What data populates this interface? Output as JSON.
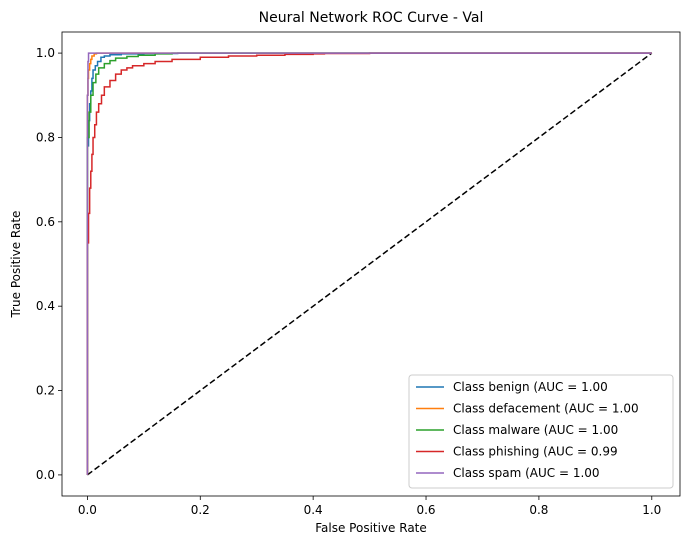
{
  "chart_data": {
    "type": "line",
    "title": "Neural Network ROC Curve - Val",
    "xlabel": "False Positive Rate",
    "ylabel": "True Positive Rate",
    "xlim": [
      -0.045,
      1.05
    ],
    "ylim": [
      -0.05,
      1.05
    ],
    "xticks": [
      0.0,
      0.2,
      0.4,
      0.6,
      0.8,
      1.0
    ],
    "yticks": [
      0.0,
      0.2,
      0.4,
      0.6,
      0.8,
      1.0
    ],
    "xtick_labels": [
      "0.0",
      "0.2",
      "0.4",
      "0.6",
      "0.8",
      "1.0"
    ],
    "ytick_labels": [
      "0.0",
      "0.2",
      "0.4",
      "0.6",
      "0.8",
      "1.0"
    ],
    "grid": false,
    "legend_position": "bottom-right",
    "series": [
      {
        "name": "Class benign (AUC = 1.00",
        "color": "#1f77b4",
        "x": [
          0,
          0,
          0.002,
          0.004,
          0.006,
          0.008,
          0.01,
          0.014,
          0.018,
          0.024,
          0.03,
          0.04,
          0.06,
          0.1,
          0.16,
          0.3,
          0.55,
          1.0
        ],
        "y": [
          0,
          0.5,
          0.78,
          0.84,
          0.88,
          0.91,
          0.94,
          0.96,
          0.97,
          0.98,
          0.99,
          0.993,
          0.996,
          0.998,
          0.999,
          1.0,
          1.0,
          1.0
        ]
      },
      {
        "name": "Class defacement (AUC = 1.00",
        "color": "#ff7f0e",
        "x": [
          0,
          0,
          0.001,
          0.002,
          0.004,
          0.006,
          0.008,
          0.012,
          0.016,
          0.03,
          1.0
        ],
        "y": [
          0,
          0.6,
          0.9,
          0.94,
          0.96,
          0.975,
          0.985,
          0.993,
          0.998,
          1.0,
          1.0
        ]
      },
      {
        "name": "Class malware (AUC = 1.00",
        "color": "#2ca02c",
        "x": [
          0,
          0,
          0.003,
          0.006,
          0.01,
          0.015,
          0.02,
          0.03,
          0.04,
          0.05,
          0.07,
          0.09,
          0.12,
          0.15,
          0.17,
          0.3,
          1.0
        ],
        "y": [
          0,
          0.55,
          0.8,
          0.86,
          0.9,
          0.93,
          0.95,
          0.965,
          0.975,
          0.982,
          0.988,
          0.992,
          0.995,
          0.998,
          1.0,
          1.0,
          1.0
        ]
      },
      {
        "name": "Class phishing (AUC = 0.99",
        "color": "#d62728",
        "x": [
          0,
          0,
          0.002,
          0.004,
          0.006,
          0.008,
          0.01,
          0.013,
          0.016,
          0.02,
          0.025,
          0.03,
          0.04,
          0.05,
          0.06,
          0.07,
          0.08,
          0.1,
          0.12,
          0.15,
          0.2,
          0.25,
          0.3,
          0.35,
          0.4,
          0.42,
          0.5,
          0.56,
          0.6,
          1.0
        ],
        "y": [
          0,
          0.3,
          0.55,
          0.62,
          0.68,
          0.72,
          0.76,
          0.8,
          0.83,
          0.86,
          0.88,
          0.9,
          0.92,
          0.935,
          0.95,
          0.96,
          0.965,
          0.97,
          0.975,
          0.98,
          0.985,
          0.99,
          0.993,
          0.995,
          0.997,
          0.998,
          0.999,
          1.0,
          1.0,
          1.0
        ]
      },
      {
        "name": "Class spam (AUC = 1.00",
        "color": "#9467bd",
        "x": [
          0,
          0,
          0.001,
          0.002,
          0.004,
          0.55,
          0.56,
          1.0
        ],
        "y": [
          0,
          0.12,
          0.9,
          0.98,
          1.0,
          1.0,
          1.0,
          1.0
        ]
      }
    ],
    "reference_line": {
      "x": [
        0,
        1
      ],
      "y": [
        0,
        1
      ],
      "color": "#000000",
      "style": "dashed"
    }
  }
}
